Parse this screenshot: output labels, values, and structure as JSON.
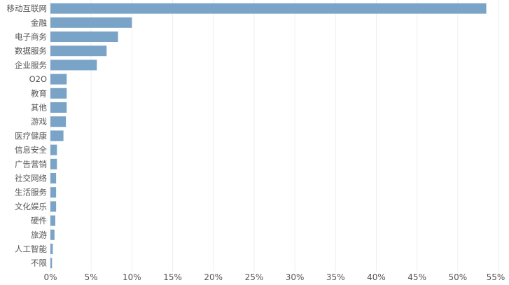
{
  "chart_data": {
    "type": "bar",
    "orientation": "horizontal",
    "categories": [
      "移动互联网",
      "金融",
      "电子商务",
      "数据服务",
      "企业服务",
      "O2O",
      "教育",
      "其他",
      "游戏",
      "医疗健康",
      "信息安全",
      "广告营销",
      "社交网络",
      "生活服务",
      "文化娱乐",
      "硬件",
      "旅游",
      "人工智能",
      "不限"
    ],
    "values": [
      53.5,
      10.0,
      8.3,
      6.9,
      5.7,
      2.0,
      2.0,
      2.0,
      1.9,
      1.6,
      0.8,
      0.8,
      0.7,
      0.7,
      0.7,
      0.6,
      0.5,
      0.3,
      0.2
    ],
    "xlim": [
      0,
      55
    ],
    "xticks": [
      "0%",
      "5%",
      "10%",
      "15%",
      "20%",
      "25%",
      "30%",
      "35%",
      "40%",
      "45%",
      "50%",
      "55%"
    ],
    "grid": true,
    "colors": {
      "bar": "#7aa3c8",
      "grid": "#eeeeee"
    }
  }
}
